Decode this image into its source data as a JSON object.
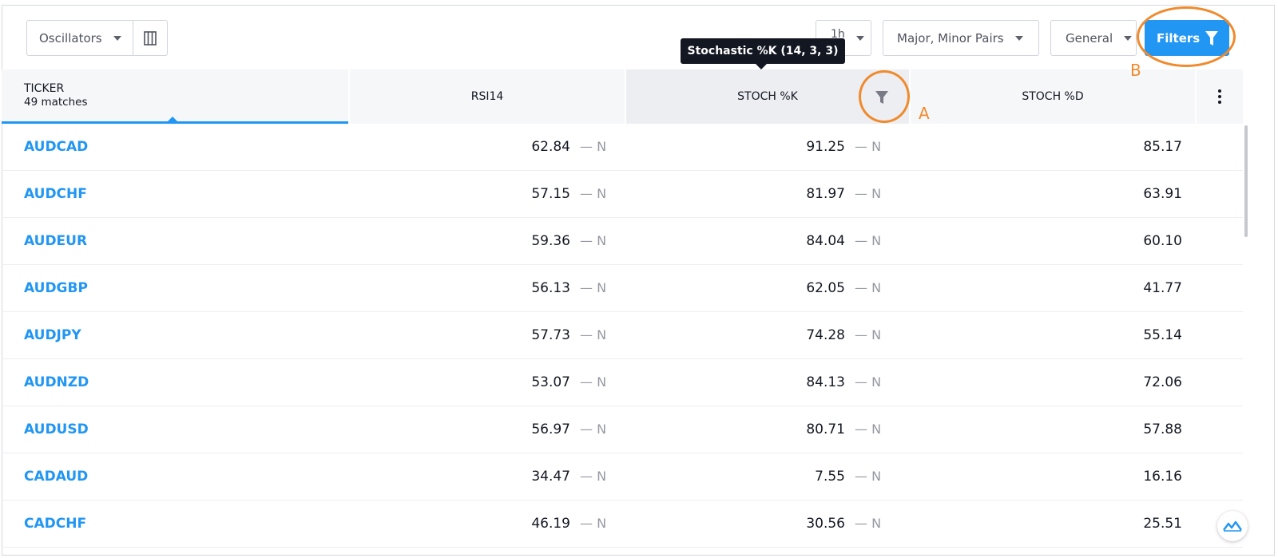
{
  "toolbar": {
    "view_label": "Oscillators",
    "interval_label": "1h",
    "market_label": "Major, Minor Pairs",
    "group_label": "General",
    "filters_label": "Filters"
  },
  "tooltip": {
    "text": "Stochastic %K (14, 3, 3)"
  },
  "header": {
    "ticker_label": "TICKER",
    "matches_label": "49 matches",
    "columns": [
      "RSI14",
      "STOCH %K",
      "STOCH %D"
    ]
  },
  "rec_label": "— N",
  "rows": [
    {
      "ticker": "AUDCAD",
      "rsi14": "62.84",
      "stoch_k": "91.25",
      "stoch_d": "85.17"
    },
    {
      "ticker": "AUDCHF",
      "rsi14": "57.15",
      "stoch_k": "81.97",
      "stoch_d": "63.91"
    },
    {
      "ticker": "AUDEUR",
      "rsi14": "59.36",
      "stoch_k": "84.04",
      "stoch_d": "60.10"
    },
    {
      "ticker": "AUDGBP",
      "rsi14": "56.13",
      "stoch_k": "62.05",
      "stoch_d": "41.77"
    },
    {
      "ticker": "AUDJPY",
      "rsi14": "57.73",
      "stoch_k": "74.28",
      "stoch_d": "55.14"
    },
    {
      "ticker": "AUDNZD",
      "rsi14": "53.07",
      "stoch_k": "84.13",
      "stoch_d": "72.06"
    },
    {
      "ticker": "AUDUSD",
      "rsi14": "56.97",
      "stoch_k": "80.71",
      "stoch_d": "57.88"
    },
    {
      "ticker": "CADAUD",
      "rsi14": "34.47",
      "stoch_k": "7.55",
      "stoch_d": "16.16"
    },
    {
      "ticker": "CADCHF",
      "rsi14": "46.19",
      "stoch_k": "30.56",
      "stoch_d": "25.51"
    }
  ],
  "annotations": {
    "a": "A",
    "b": "B"
  },
  "colors": {
    "accent": "#2196f3",
    "annotation": "#f08a2c",
    "tooltip_bg": "#131722"
  },
  "icons": {
    "columns": "columns-icon",
    "filter": "filter-icon",
    "more": "more-vertical-icon",
    "logo": "tradingview-logo-icon"
  }
}
